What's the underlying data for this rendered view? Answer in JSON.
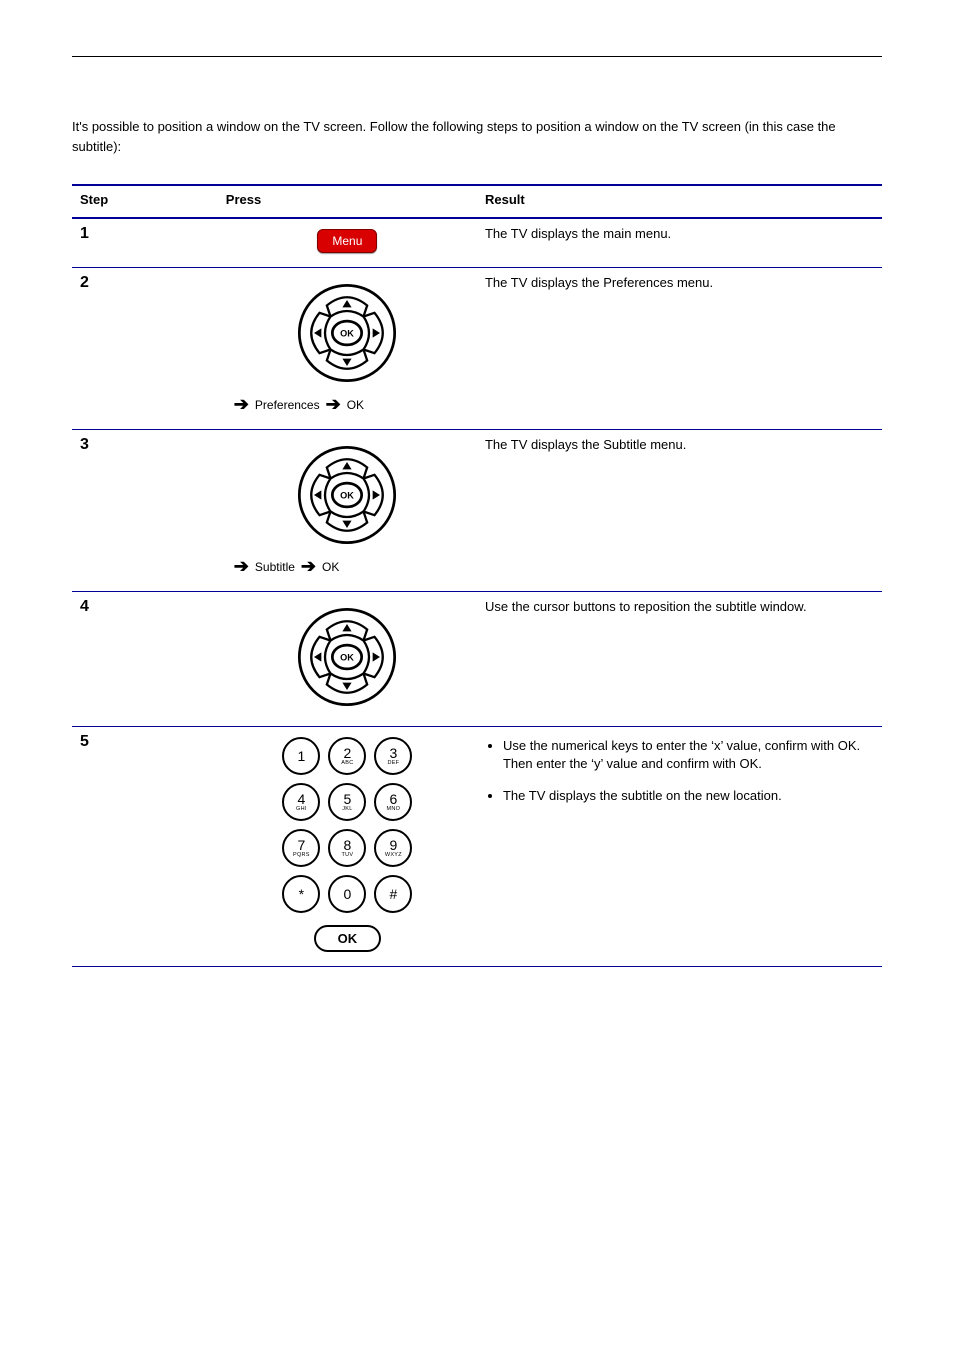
{
  "intro_text": "It's possible to position a window on the TV screen. Follow the following steps to position a window on the TV screen (in this case the subtitle):",
  "table": {
    "headers": {
      "step": "Step",
      "press": "Press",
      "result": "Result"
    },
    "menu_label": "Menu",
    "ok_label": "OK",
    "arrow_ok": "OK",
    "rows": [
      {
        "step": "1",
        "type": "menu",
        "result": "The TV displays the main menu."
      },
      {
        "step": "2",
        "type": "dpad_ok",
        "nav_label": "Preferences",
        "result": "The TV displays the Preferences menu."
      },
      {
        "step": "3",
        "type": "dpad_ok",
        "nav_label": "Subtitle",
        "result": "The TV displays the Subtitle menu."
      },
      {
        "step": "4",
        "type": "dpad",
        "result": "Use the cursor buttons to reposition the subtitle window."
      },
      {
        "step": "5",
        "type": "keypad",
        "bullets": [
          "Use the numerical keys to enter the ‘x’ value, confirm with OK. Then enter the ‘y’ value and confirm with OK.",
          "The TV displays the subtitle on the new location."
        ]
      }
    ]
  },
  "keypad_keys": [
    {
      "d": "1",
      "l": ""
    },
    {
      "d": "2",
      "l": "ABC"
    },
    {
      "d": "3",
      "l": "DEF"
    },
    {
      "d": "4",
      "l": "GHI"
    },
    {
      "d": "5",
      "l": "JKL"
    },
    {
      "d": "6",
      "l": "MNO"
    },
    {
      "d": "7",
      "l": "PQRS"
    },
    {
      "d": "8",
      "l": "TUV"
    },
    {
      "d": "9",
      "l": "WXYZ"
    },
    {
      "d": "*",
      "l": ""
    },
    {
      "d": "0",
      "l": ""
    },
    {
      "d": "#",
      "l": ""
    }
  ],
  "colors": {
    "rule": "#000099",
    "menu_btn_bg": "#d80000",
    "menu_btn_text": "#ffffff"
  }
}
